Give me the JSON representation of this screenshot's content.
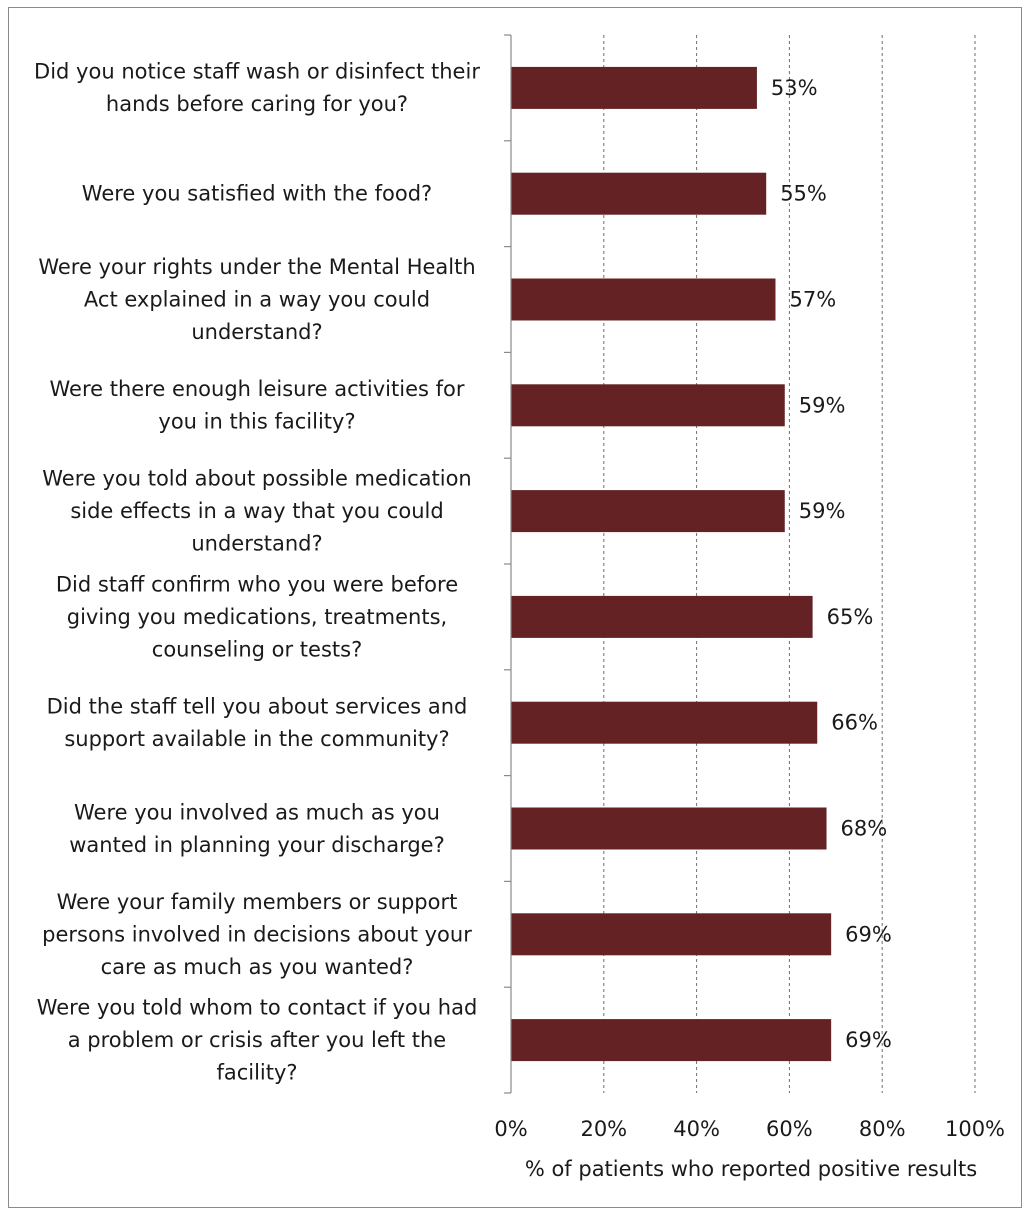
{
  "chart_data": {
    "type": "bar",
    "orientation": "horizontal",
    "categories": [
      [
        "Did you notice staff wash or disinfect their",
        "hands before caring for you?"
      ],
      [
        "Were you satisfied with the food?"
      ],
      [
        "Were your rights under the Mental Health",
        "Act explained in a way you could",
        "understand?"
      ],
      [
        "Were there enough leisure activities for",
        "you in this facility?"
      ],
      [
        "Were you told about possible medication",
        "side effects in a way that you could",
        "understand?"
      ],
      [
        "Did staff confirm who you were before",
        "giving you medications, treatments,",
        "counseling or tests?"
      ],
      [
        "Did the staff tell you about services and",
        "support available in the community?"
      ],
      [
        "Were you involved as much as you",
        "wanted in planning your discharge?"
      ],
      [
        "Were your family members or support",
        "persons involved in decisions about your",
        "care as much as you wanted?"
      ],
      [
        "Were you told whom to contact if you had",
        "a problem or crisis after you left the",
        "facility?"
      ]
    ],
    "values": [
      53,
      55,
      57,
      59,
      59,
      65,
      66,
      68,
      69,
      69
    ],
    "data_labels": [
      "53%",
      "55%",
      "57%",
      "59%",
      "59%",
      "65%",
      "66%",
      "68%",
      "69%",
      "69%"
    ],
    "xlim": [
      0,
      100
    ],
    "xticks": [
      0,
      20,
      40,
      60,
      80,
      100
    ],
    "xtick_labels": [
      "0%",
      "20%",
      "40%",
      "60%",
      "80%",
      "100%"
    ],
    "xlabel": "% of patients who reported positive results",
    "grid": "vertical dashed",
    "bar_color": "#642224",
    "legend": "none"
  }
}
